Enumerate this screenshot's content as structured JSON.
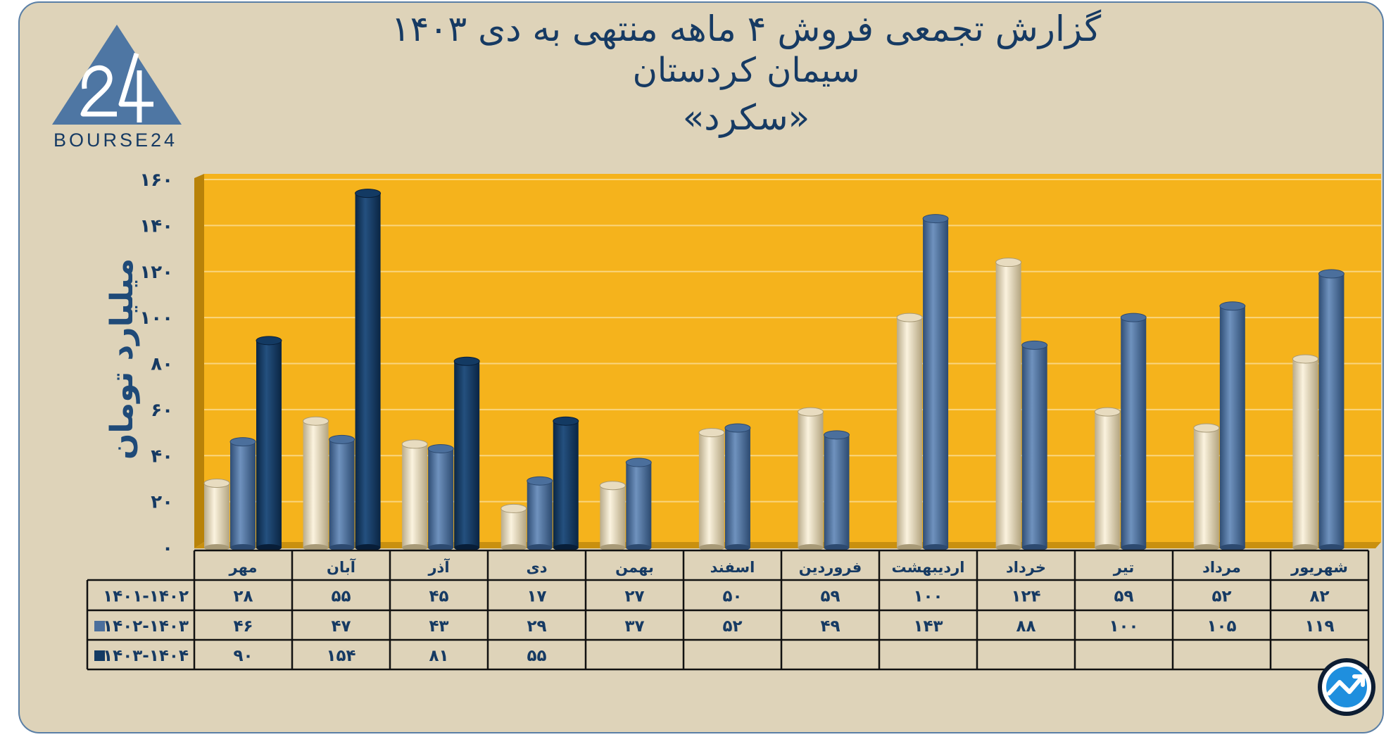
{
  "title": {
    "line1": "گزارش تجمعی فروش ۴ ماهه منتهی به دی ۱۴۰۳",
    "line2": "سیمان کردستان",
    "line3": "«سکرد»"
  },
  "logo": {
    "text": "BOURSE24",
    "mark": "24"
  },
  "colors": {
    "series1": "#e8dcc0",
    "series2": "#4b6f9c",
    "series3": "#133a63",
    "plot_bg": "#f5b31c",
    "panel_bg": "#ded3b9",
    "accent": "#163a63"
  },
  "chart_data": {
    "type": "bar",
    "title": "گزارش تجمعی فروش ۴ ماهه منتهی به دی ۱۴۰۳",
    "subtitle": "سیمان کردستان «سکرد»",
    "ylabel": "میلیارد تومان",
    "xlabel": "",
    "ylim": [
      0,
      160
    ],
    "yticks": [
      0,
      20,
      40,
      60,
      80,
      100,
      120,
      140,
      160
    ],
    "ytick_labels": [
      "۰",
      "۲۰",
      "۴۰",
      "۶۰",
      "۸۰",
      "۱۰۰",
      "۱۲۰",
      "۱۴۰",
      "۱۶۰"
    ],
    "grid": true,
    "categories": [
      "مهر",
      "آبان",
      "آذر",
      "دی",
      "بهمن",
      "اسفند",
      "فروردین",
      "اردیبهشت",
      "خرداد",
      "تیر",
      "مرداد",
      "شهریور"
    ],
    "series": [
      {
        "name": "۱۴۰۱-۱۴۰۲",
        "values": [
          28,
          55,
          45,
          17,
          27,
          50,
          59,
          100,
          124,
          59,
          52,
          82
        ],
        "labels": [
          "۲۸",
          "۵۵",
          "۴۵",
          "۱۷",
          "۲۷",
          "۵۰",
          "۵۹",
          "۱۰۰",
          "۱۲۴",
          "۵۹",
          "۵۲",
          "۸۲"
        ]
      },
      {
        "name": "۱۴۰۲-۱۴۰۳",
        "values": [
          46,
          47,
          43,
          29,
          37,
          52,
          49,
          143,
          88,
          100,
          105,
          119
        ],
        "labels": [
          "۴۶",
          "۴۷",
          "۴۳",
          "۲۹",
          "۳۷",
          "۵۲",
          "۴۹",
          "۱۴۳",
          "۸۸",
          "۱۰۰",
          "۱۰۵",
          "۱۱۹"
        ]
      },
      {
        "name": "۱۴۰۳-۱۴۰۴",
        "values": [
          90,
          154,
          81,
          55,
          null,
          null,
          null,
          null,
          null,
          null,
          null,
          null
        ],
        "labels": [
          "۹۰",
          "۱۵۴",
          "۸۱",
          "۵۵",
          "",
          "",
          "",
          "",
          "",
          "",
          "",
          ""
        ]
      }
    ]
  }
}
